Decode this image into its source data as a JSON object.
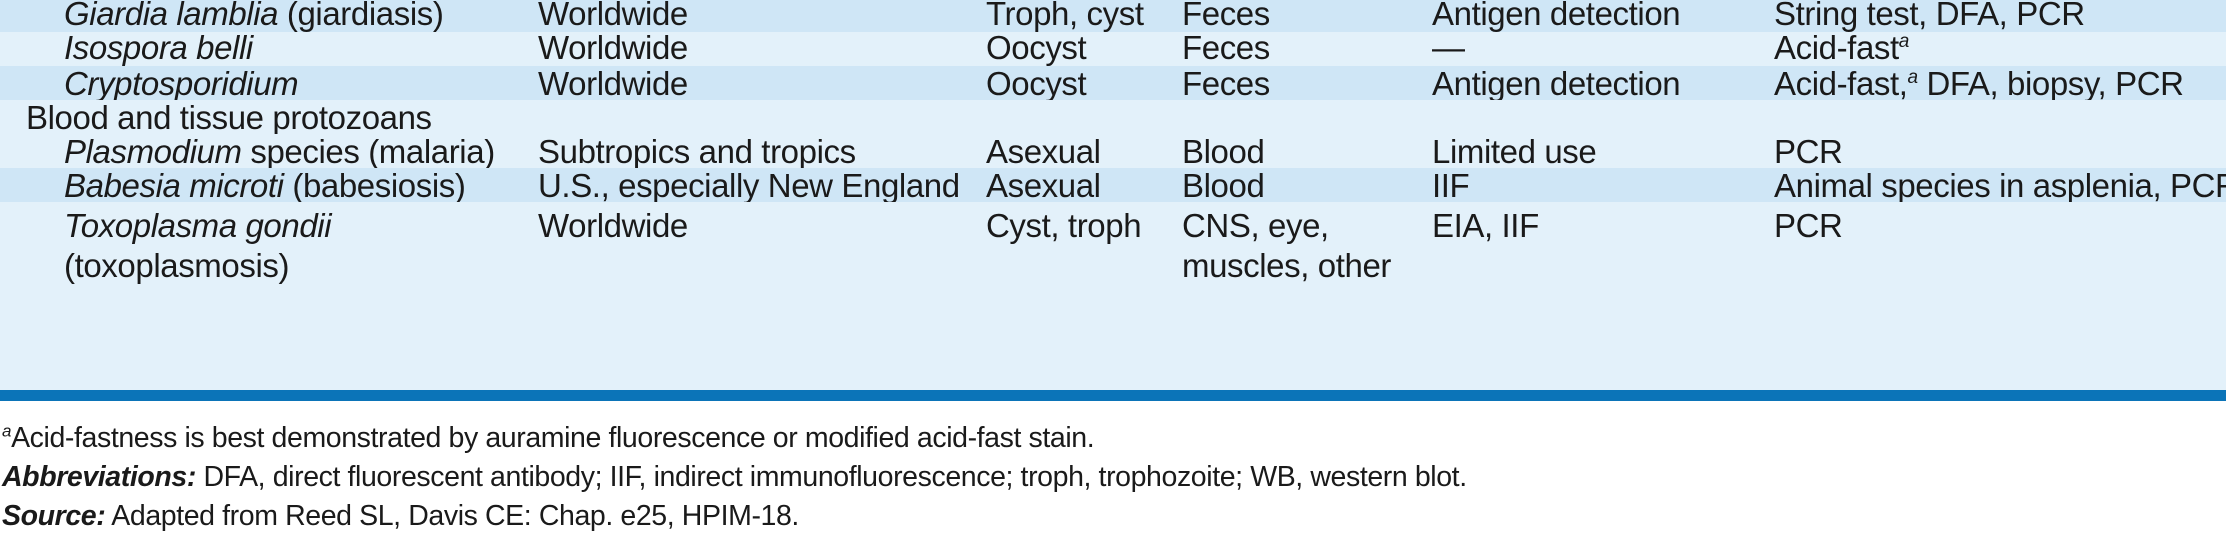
{
  "rows": [
    {
      "organism_italic": "Giardia lamblia",
      "organism_rest": " (giardiasis)",
      "distribution": "Worldwide",
      "stage": "Troph, cyst",
      "specimen": "Feces",
      "antigen": "Antigen detection",
      "other_pre": "String test, DFA, PCR",
      "other_sup": "",
      "other_post": ""
    },
    {
      "organism_italic": "Isospora belli",
      "organism_rest": "",
      "distribution": "Worldwide",
      "stage": "Oocyst",
      "specimen": "Feces",
      "antigen": "—",
      "other_pre": "Acid-fast",
      "other_sup": "a",
      "other_post": ""
    },
    {
      "organism_italic": "Cryptosporidium",
      "organism_rest": "",
      "distribution": "Worldwide",
      "stage": "Oocyst",
      "specimen": "Feces",
      "antigen": "Antigen detection",
      "other_pre": "Acid-fast,",
      "other_sup": "a",
      "other_post": " DFA, biopsy, PCR"
    },
    {
      "group_label": "Blood and tissue protozoans"
    },
    {
      "organism_italic": "Plasmodium",
      "organism_rest": " species (malaria)",
      "distribution": "Subtropics and tropics",
      "stage": "Asexual",
      "specimen": "Blood",
      "antigen": "Limited use",
      "other_pre": "PCR",
      "other_sup": "",
      "other_post": ""
    },
    {
      "organism_italic": "Babesia microti",
      "organism_rest": " (babesiosis)",
      "distribution": "U.S., especially New England",
      "stage": "Asexual",
      "specimen": "Blood",
      "antigen": "IIF",
      "other_pre": "Animal species in asplenia, PCR",
      "other_sup": "",
      "other_post": ""
    },
    {
      "organism_italic": "Toxoplasma gondii",
      "organism_line2": "(toxoplasmosis)",
      "distribution": "Worldwide",
      "stage": "Cyst, troph",
      "specimen_line1": "CNS, eye,",
      "specimen_line2": "muscles, other",
      "antigen": "EIA, IIF",
      "other_pre": "PCR",
      "other_sup": "",
      "other_post": ""
    }
  ],
  "footnotes": {
    "a_marker": "a",
    "a_text": "Acid-fastness is best demonstrated by auramine fluorescence or modified acid-fast stain.",
    "abbr_label": "Abbreviations:",
    "abbr_text": " DFA, direct fluorescent antibody; IIF, indirect immunofluorescence; troph, trophozoite; WB, western blot.",
    "source_label": "Source:",
    "source_text": " Adapted from Reed SL, Davis CE: Chap. e25, HPIM-18."
  },
  "colors": {
    "row_dark": "#cfe6f6",
    "row_light": "#e3f1fa",
    "rule": "#0b74b8"
  }
}
